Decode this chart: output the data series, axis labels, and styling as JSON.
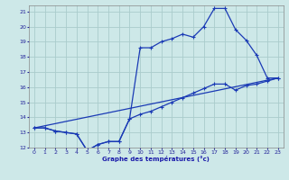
{
  "xlabel": "Graphe des températures (°c)",
  "background_color": "#cde8e8",
  "grid_color": "#aacccc",
  "line_color": "#1a3ab5",
  "xlim": [
    -0.5,
    23.5
  ],
  "ylim": [
    12,
    21.4
  ],
  "xticks": [
    0,
    1,
    2,
    3,
    4,
    5,
    6,
    7,
    8,
    9,
    10,
    11,
    12,
    13,
    14,
    15,
    16,
    17,
    18,
    19,
    20,
    21,
    22,
    23
  ],
  "yticks": [
    12,
    13,
    14,
    15,
    16,
    17,
    18,
    19,
    20,
    21
  ],
  "line1_x": [
    0,
    1,
    2,
    3,
    4,
    5,
    6,
    7,
    8,
    9,
    10,
    11,
    12,
    13,
    14,
    15,
    16,
    17,
    18,
    19,
    20,
    21,
    22,
    23
  ],
  "line1_y": [
    13.3,
    13.3,
    13.1,
    13.0,
    12.9,
    11.8,
    12.2,
    12.4,
    12.4,
    13.9,
    18.6,
    18.6,
    19.0,
    19.2,
    19.5,
    19.3,
    20.0,
    21.2,
    21.2,
    19.8,
    19.1,
    18.1,
    16.6,
    16.6
  ],
  "line2_x": [
    0,
    1,
    2,
    3,
    4,
    5,
    6,
    7,
    8,
    9,
    10,
    11,
    12,
    13,
    14,
    15,
    16,
    17,
    18,
    19,
    20,
    21,
    22,
    23
  ],
  "line2_y": [
    13.3,
    13.3,
    13.1,
    13.0,
    12.9,
    11.8,
    12.2,
    12.4,
    12.4,
    13.9,
    14.2,
    14.4,
    14.7,
    15.0,
    15.3,
    15.6,
    15.9,
    16.2,
    16.2,
    15.8,
    16.1,
    16.2,
    16.4,
    16.6
  ],
  "line3_x": [
    0,
    23
  ],
  "line3_y": [
    13.3,
    16.6
  ]
}
